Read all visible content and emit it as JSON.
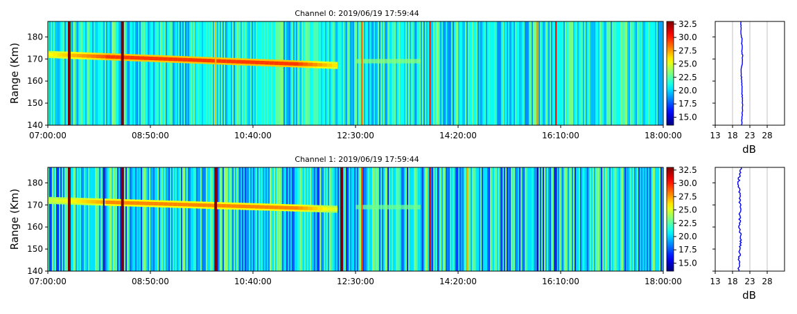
{
  "colors": {
    "colormap": [
      "#00007f",
      "#0000ff",
      "#007fff",
      "#00ffff",
      "#7fff7f",
      "#ffff00",
      "#ff7f00",
      "#ff0000",
      "#7f0000"
    ],
    "profile_line": "#0000ff",
    "grid": "#b0b0b0",
    "axis": "#000000"
  },
  "chart_data": [
    {
      "type": "heatmap",
      "title": "Channel 0: 2019/06/19 17:59:44",
      "ylabel": "Range (Km)",
      "x_ticks": [
        "07:00:00",
        "08:50:00",
        "10:40:00",
        "12:30:00",
        "14:20:00",
        "16:10:00",
        "18:00:00"
      ],
      "x_range": [
        "07:00:00",
        "18:00:00"
      ],
      "y_ticks": [
        140,
        150,
        160,
        170,
        180
      ],
      "y_range": [
        140,
        187
      ],
      "colorbar": {
        "ticks": [
          "15.0",
          "17.5",
          "20.0",
          "22.5",
          "25.0",
          "27.5",
          "30.0",
          "32.5"
        ],
        "range": [
          13.5,
          33.0
        ]
      },
      "background_dB": 21.0,
      "echo_trace": {
        "start_time": "07:00:00",
        "end_time": "12:10:00",
        "range_start": 172,
        "range_end": 167,
        "peak_dB": 29.5
      },
      "faint_trace": {
        "start_time": "12:30:00",
        "end_time": "13:40:00",
        "range": 169,
        "dB": 23.5
      },
      "vertical_events": [
        {
          "time": "07:23:00",
          "dB": 33.0
        },
        {
          "time": "08:20:00",
          "dB": 33.0
        },
        {
          "time": "10:00:00",
          "dB": 27.0
        },
        {
          "time": "12:37:00",
          "dB": 28.5
        },
        {
          "time": "13:50:00",
          "dB": 30.0
        },
        {
          "time": "15:45:00",
          "dB": 28.0
        },
        {
          "time": "16:05:00",
          "dB": 31.0
        }
      ],
      "profile": {
        "xlabel": "dB",
        "x_ticks": [
          13,
          18,
          23,
          28
        ],
        "x_range": [
          13,
          33
        ],
        "y_range": [
          140,
          187
        ],
        "range": [
          140,
          145,
          150,
          155,
          160,
          165,
          170,
          175,
          180,
          185,
          187
        ],
        "dB": [
          20.6,
          20.8,
          20.9,
          20.7,
          20.6,
          20.5,
          20.9,
          20.7,
          20.6,
          20.4,
          20.5
        ]
      }
    },
    {
      "type": "heatmap",
      "title": "Channel 1: 2019/06/19 17:59:44",
      "ylabel": "Range (Km)",
      "x_ticks": [
        "07:00:00",
        "08:50:00",
        "10:40:00",
        "12:30:00",
        "14:20:00",
        "16:10:00",
        "18:00:00"
      ],
      "x_range": [
        "07:00:00",
        "18:00:00"
      ],
      "y_ticks": [
        140,
        150,
        160,
        170,
        180
      ],
      "y_range": [
        140,
        187
      ],
      "colorbar": {
        "ticks": [
          "15.0",
          "17.5",
          "20.0",
          "22.5",
          "25.0",
          "27.5",
          "30.0",
          "32.5"
        ],
        "range": [
          13.5,
          33.0
        ]
      },
      "background_dB": 20.3,
      "echo_trace": {
        "start_time": "07:00:00",
        "end_time": "12:10:00",
        "range_start": 172,
        "range_end": 168,
        "peak_dB": 28.0
      },
      "faint_trace": {
        "start_time": "12:30:00",
        "end_time": "13:40:00",
        "range": 169,
        "dB": 23.0
      },
      "vertical_events": [
        {
          "time": "07:23:00",
          "dB": 33.0
        },
        {
          "time": "08:00:00",
          "dB": 14.0
        },
        {
          "time": "08:20:00",
          "dB": 33.0
        },
        {
          "time": "10:00:00",
          "dB": 33.0
        },
        {
          "time": "12:15:00",
          "dB": 33.0
        },
        {
          "time": "12:37:00",
          "dB": 29.0
        },
        {
          "time": "13:50:00",
          "dB": 31.0
        },
        {
          "time": "14:30:00",
          "dB": 27.0
        },
        {
          "time": "15:45:00",
          "dB": 14.0
        },
        {
          "time": "16:05:00",
          "dB": 14.0
        }
      ],
      "profile": {
        "xlabel": "dB",
        "x_ticks": [
          13,
          18,
          23,
          28
        ],
        "x_range": [
          13,
          33
        ],
        "y_range": [
          140,
          187
        ],
        "range": [
          140,
          145,
          150,
          155,
          160,
          165,
          170,
          175,
          180,
          185,
          187
        ],
        "dB": [
          19.8,
          19.9,
          20.1,
          20.4,
          20.0,
          20.1,
          20.2,
          20.0,
          19.7,
          20.2,
          20.4
        ]
      }
    }
  ]
}
